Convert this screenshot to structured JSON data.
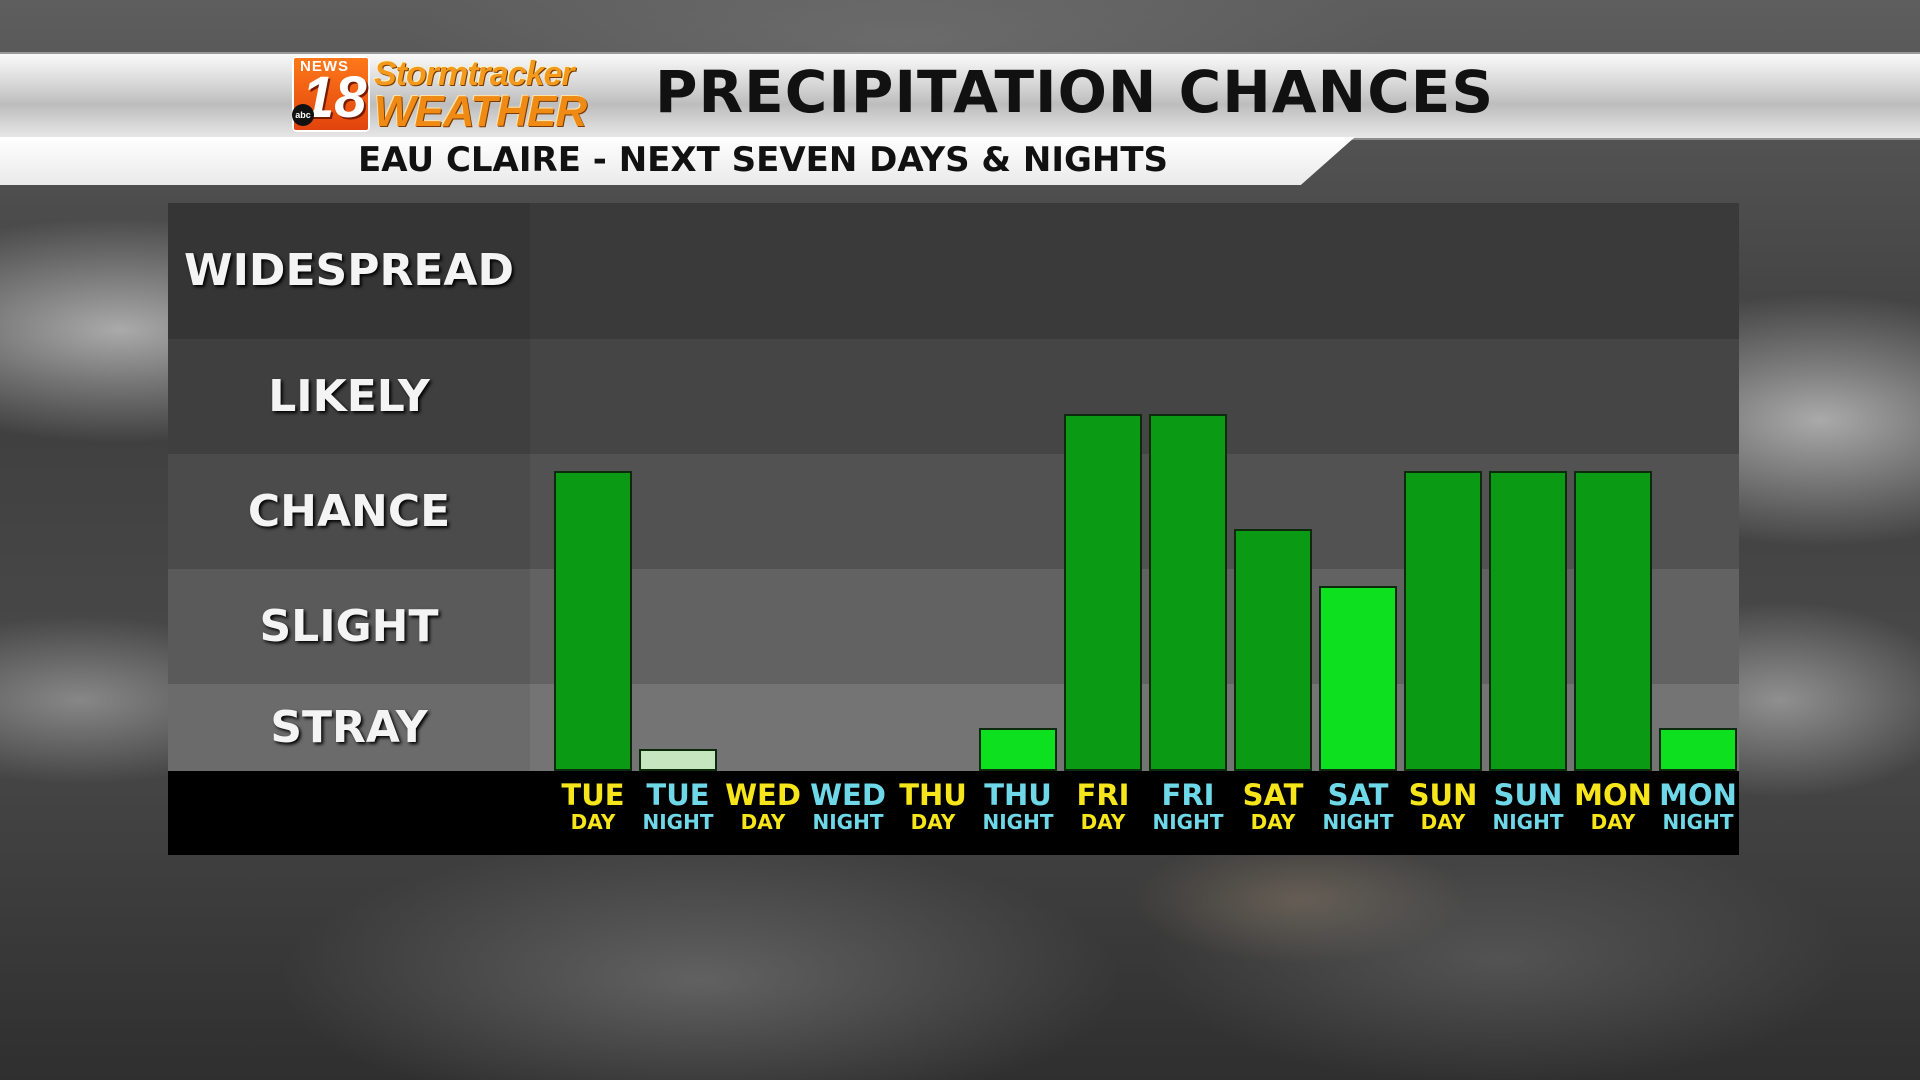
{
  "header": {
    "logo": {
      "news": "NEWS",
      "number": "18",
      "network": "abc",
      "line1": "Stormtracker",
      "line2": "WEATHER"
    },
    "title": "PRECIPITATION CHANCES",
    "subtitle": "EAU CLAIRE - NEXT SEVEN DAYS & NIGHTS"
  },
  "colors": {
    "day_label": "#f5e51a",
    "night_label": "#6fd8e8",
    "band_colors": [
      "#3a3a3a",
      "#454545",
      "#525252",
      "#626262",
      "#747474"
    ],
    "bar_dark": "#0a9a14",
    "bar_bright": "#0de01e",
    "bar_pale": "#c6e6c0"
  },
  "chart_data": {
    "type": "bar",
    "title": "PRECIPITATION CHANCES",
    "subtitle": "EAU CLAIRE - NEXT SEVEN DAYS & NIGHTS",
    "y_levels": [
      "WIDESPREAD",
      "LIKELY",
      "CHANCE",
      "SLIGHT",
      "STRAY"
    ],
    "y_scale": "0 = none, 1 = STRAY, 2 = SLIGHT, 3 = CHANCE, 4 = LIKELY, 5 = WIDESPREAD",
    "ylim": [
      0,
      5
    ],
    "categories": [
      {
        "day": "TUE",
        "period": "DAY"
      },
      {
        "day": "TUE",
        "period": "NIGHT"
      },
      {
        "day": "WED",
        "period": "DAY"
      },
      {
        "day": "WED",
        "period": "NIGHT"
      },
      {
        "day": "THU",
        "period": "DAY"
      },
      {
        "day": "THU",
        "period": "NIGHT"
      },
      {
        "day": "FRI",
        "period": "DAY"
      },
      {
        "day": "FRI",
        "period": "NIGHT"
      },
      {
        "day": "SAT",
        "period": "DAY"
      },
      {
        "day": "SAT",
        "period": "NIGHT"
      },
      {
        "day": "SUN",
        "period": "DAY"
      },
      {
        "day": "SUN",
        "period": "NIGHT"
      },
      {
        "day": "MON",
        "period": "DAY"
      },
      {
        "day": "MON",
        "period": "NIGHT"
      }
    ],
    "values": [
      3.35,
      0.5,
      0,
      0,
      0,
      1.0,
      3.85,
      3.85,
      2.85,
      2.35,
      3.35,
      3.35,
      3.35,
      1.0
    ],
    "bar_color_keys": [
      "bar_dark",
      "bar_pale",
      "bar_dark",
      "bar_dark",
      "bar_dark",
      "bar_bright",
      "bar_dark",
      "bar_dark",
      "bar_dark",
      "bar_bright",
      "bar_dark",
      "bar_dark",
      "bar_dark",
      "bar_bright"
    ]
  }
}
